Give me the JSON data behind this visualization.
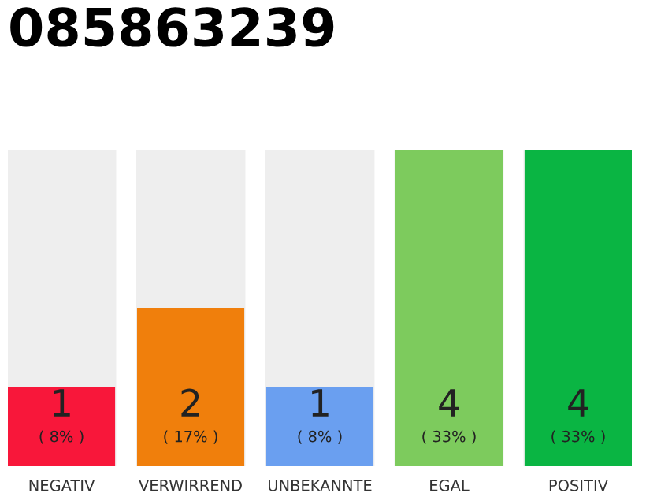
{
  "chart_data": {
    "type": "bar",
    "title": "085863239",
    "categories": [
      "NEGATIV",
      "VERWIRREND",
      "UNBEKANNTE",
      "EGAL",
      "POSITIV"
    ],
    "values": [
      1,
      2,
      1,
      4,
      4
    ],
    "colors": [
      "#f8173a",
      "#f07f0c",
      "#6a9ff0",
      "#7dcb5d",
      "#0ab543"
    ],
    "ylim": [
      0,
      4
    ],
    "data_labels": true,
    "annotations": [
      "( 8% )",
      "( 17% )",
      "( 8% )",
      "( 33% )",
      "( 33% )"
    ],
    "grid": false,
    "legend": false
  }
}
